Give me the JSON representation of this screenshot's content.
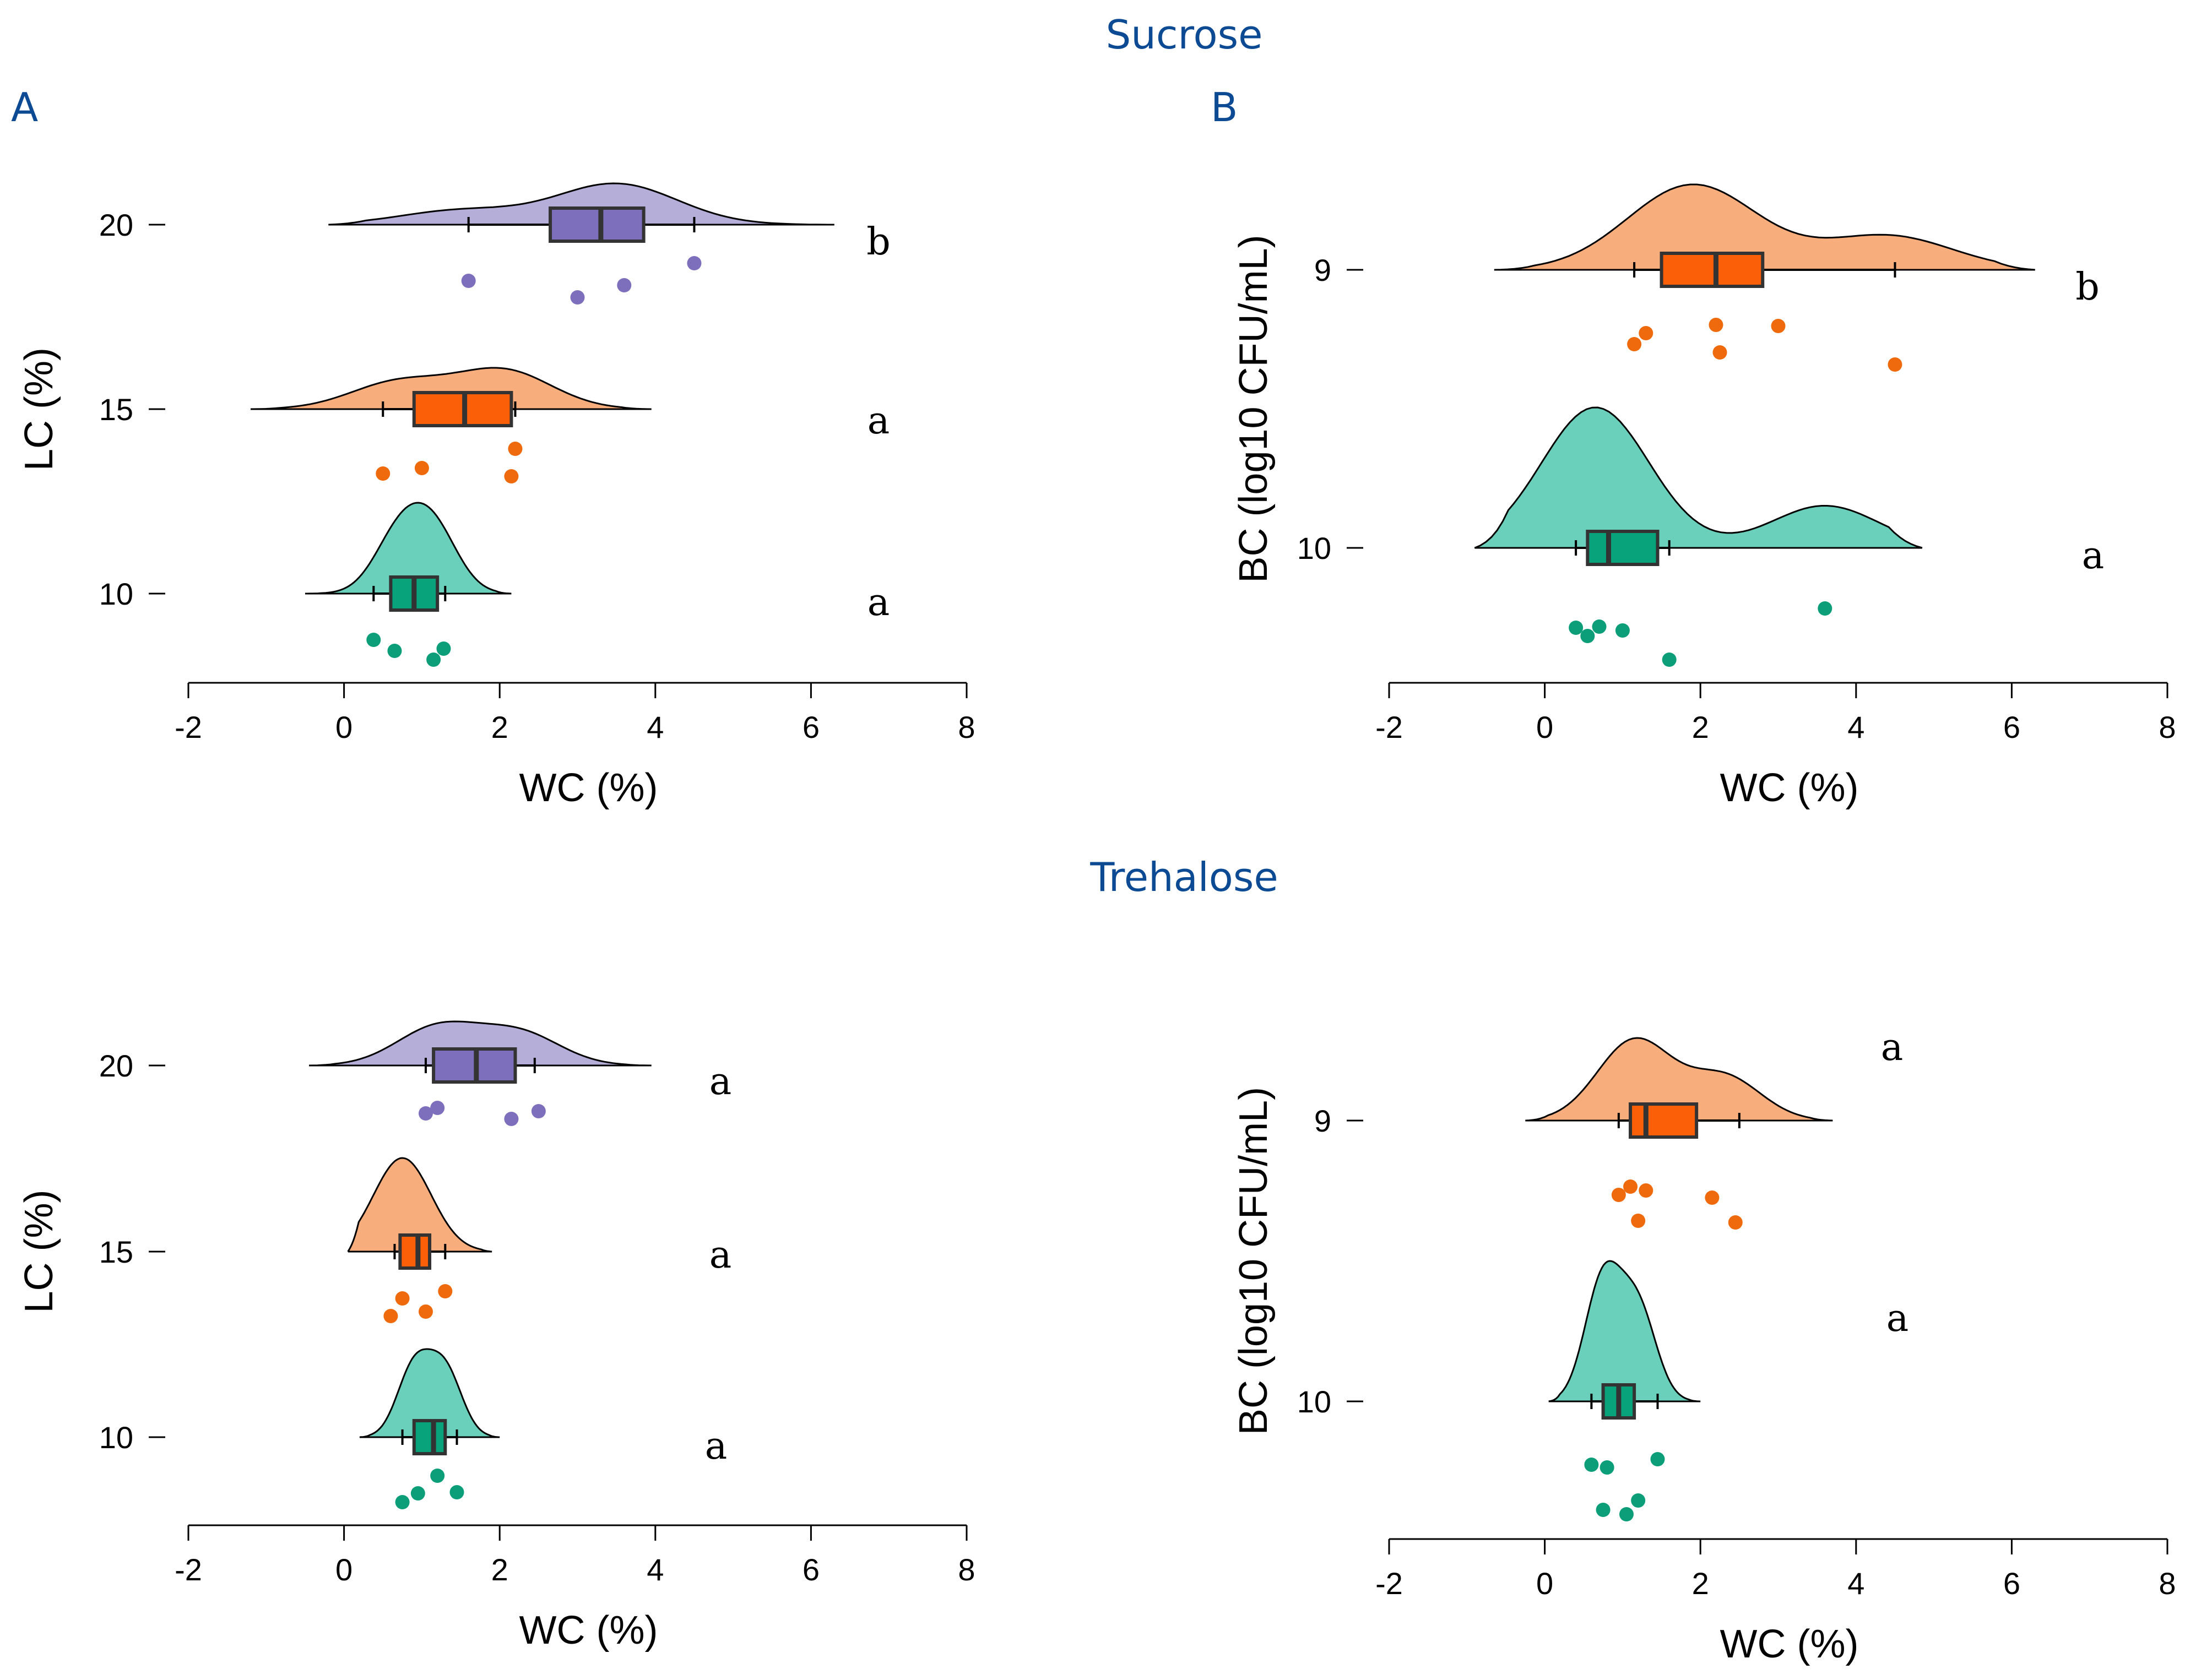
{
  "sections": {
    "top_title": "Sucrose",
    "bottom_title": "Trehalose"
  },
  "colors": {
    "title": "#0d4a94",
    "group_20_fill": "#b5aed8",
    "group_20_box": "#7e6fbd",
    "group_20_dot": "#7e6fbd",
    "group_15_fill": "#f8ad7c",
    "group_15_box": "#fb6008",
    "group_15_dot": "#ef6a0c",
    "group_10_fill": "#6bd0bb",
    "group_10_box": "#08a37b",
    "group_10_dot": "#0c9e78"
  },
  "chart_data": [
    {
      "panel_label": "A",
      "type": "raincloud",
      "xlabel": "WC (%)",
      "ylabel": "LC (%)",
      "xlim": [
        -2,
        8
      ],
      "x_ticks": [
        "-2",
        "0",
        "2",
        "4",
        "6",
        "8"
      ],
      "groups": [
        {
          "name": "20",
          "color_key": "group_20",
          "box": {
            "whisker_low": 1.6,
            "q1": 2.65,
            "median": 3.3,
            "q3": 3.85,
            "whisker_high": 4.5
          },
          "density_range": [
            -0.2,
            6.3
          ],
          "density_peaks": [
            {
              "x": 1.5,
              "h": 0.35
            },
            {
              "x": 3.5,
              "h": 1.0
            }
          ],
          "points": [
            1.6,
            3.0,
            3.6,
            4.5
          ],
          "letter": "b"
        },
        {
          "name": "15",
          "color_key": "group_15",
          "box": {
            "whisker_low": 0.5,
            "q1": 0.9,
            "median": 1.55,
            "q3": 2.15,
            "whisker_high": 2.2
          },
          "density_range": [
            -1.2,
            3.95
          ],
          "density_peaks": [
            {
              "x": 0.7,
              "h": 0.7
            },
            {
              "x": 2.05,
              "h": 1.0
            }
          ],
          "points": [
            0.5,
            1.0,
            2.15,
            2.2
          ],
          "letter": "a"
        },
        {
          "name": "10",
          "color_key": "group_10",
          "box": {
            "whisker_low": 0.38,
            "q1": 0.6,
            "median": 0.9,
            "q3": 1.2,
            "whisker_high": 1.3
          },
          "density_range": [
            -0.5,
            2.15
          ],
          "density_peaks": [
            {
              "x": 0.7,
              "h": 0.9
            },
            {
              "x": 1.15,
              "h": 1.0
            }
          ],
          "points": [
            0.38,
            0.65,
            1.15,
            1.28
          ],
          "letter": "a"
        }
      ]
    },
    {
      "panel_label": "B",
      "type": "raincloud",
      "xlabel": "WC (%)",
      "ylabel": "BC (log10 CFU/mL)",
      "xlim": [
        -2,
        8
      ],
      "x_ticks": [
        "-2",
        "0",
        "2",
        "4",
        "6",
        "8"
      ],
      "groups": [
        {
          "name": "9",
          "color_key": "group_15",
          "box": {
            "whisker_low": 1.15,
            "q1": 1.5,
            "median": 2.2,
            "q3": 2.8,
            "whisker_high": 4.5
          },
          "density_range": [
            -0.65,
            6.3
          ],
          "density_peaks": [
            {
              "x": 1.9,
              "h": 1.0
            },
            {
              "x": 4.4,
              "h": 0.4
            }
          ],
          "points": [
            1.15,
            1.3,
            2.2,
            2.25,
            3.0,
            4.5
          ],
          "letter": "b"
        },
        {
          "name": "10",
          "color_key": "group_10",
          "box": {
            "whisker_low": 0.4,
            "q1": 0.55,
            "median": 0.82,
            "q3": 1.45,
            "whisker_high": 1.6
          },
          "density_range": [
            -0.9,
            4.85
          ],
          "density_peaks": [
            {
              "x": 0.65,
              "h": 1.0
            },
            {
              "x": 3.6,
              "h": 0.3
            }
          ],
          "points": [
            0.4,
            0.55,
            0.7,
            1.0,
            1.6,
            3.6
          ],
          "letter": "a"
        }
      ]
    },
    {
      "panel_label": "",
      "type": "raincloud",
      "xlabel": "WC (%)",
      "ylabel": "LC (%)",
      "xlim": [
        -2,
        8
      ],
      "x_ticks": [
        "-2",
        "0",
        "2",
        "4",
        "6",
        "8"
      ],
      "groups": [
        {
          "name": "20",
          "color_key": "group_20",
          "box": {
            "whisker_low": 1.05,
            "q1": 1.15,
            "median": 1.7,
            "q3": 2.2,
            "whisker_high": 2.45
          },
          "density_range": [
            -0.45,
            3.95
          ],
          "density_peaks": [
            {
              "x": 1.2,
              "h": 1.0
            },
            {
              "x": 2.25,
              "h": 0.85
            }
          ],
          "points": [
            1.05,
            1.2,
            2.15,
            2.5
          ],
          "letter": "a"
        },
        {
          "name": "15",
          "color_key": "group_15",
          "box": {
            "whisker_low": 0.65,
            "q1": 0.72,
            "median": 0.95,
            "q3": 1.1,
            "whisker_high": 1.3
          },
          "density_range": [
            0.05,
            1.9
          ],
          "density_peaks": [
            {
              "x": 0.75,
              "h": 1.0
            }
          ],
          "points": [
            0.6,
            0.75,
            1.05,
            1.3
          ],
          "letter": "a"
        },
        {
          "name": "10",
          "color_key": "group_10",
          "box": {
            "whisker_low": 0.75,
            "q1": 0.9,
            "median": 1.15,
            "q3": 1.3,
            "whisker_high": 1.45
          },
          "density_range": [
            0.2,
            2.0
          ],
          "density_peaks": [
            {
              "x": 0.9,
              "h": 0.95
            },
            {
              "x": 1.3,
              "h": 0.9
            }
          ],
          "points": [
            0.75,
            0.95,
            1.2,
            1.45
          ],
          "letter": "a"
        }
      ]
    },
    {
      "panel_label": "",
      "type": "raincloud",
      "xlabel": "WC (%)",
      "ylabel": "BC (log10 CFU/mL)",
      "xlim": [
        -2,
        8
      ],
      "x_ticks": [
        "-2",
        "0",
        "2",
        "4",
        "6",
        "8"
      ],
      "groups": [
        {
          "name": "9",
          "color_key": "group_15",
          "box": {
            "whisker_low": 0.95,
            "q1": 1.1,
            "median": 1.3,
            "q3": 1.95,
            "whisker_high": 2.5
          },
          "density_range": [
            -0.25,
            3.7
          ],
          "density_peaks": [
            {
              "x": 1.15,
              "h": 1.0
            },
            {
              "x": 2.3,
              "h": 0.55
            }
          ],
          "points": [
            0.95,
            1.1,
            1.2,
            1.3,
            2.15,
            2.45
          ],
          "letter": "a"
        },
        {
          "name": "10",
          "color_key": "group_10",
          "box": {
            "whisker_low": 0.6,
            "q1": 0.75,
            "median": 0.95,
            "q3": 1.15,
            "whisker_high": 1.45
          },
          "density_range": [
            0.05,
            2.0
          ],
          "density_peaks": [
            {
              "x": 0.75,
              "h": 1.0
            },
            {
              "x": 1.2,
              "h": 0.75
            }
          ],
          "points": [
            0.6,
            0.75,
            0.8,
            1.05,
            1.2,
            1.45
          ],
          "letter": "a"
        }
      ]
    }
  ]
}
